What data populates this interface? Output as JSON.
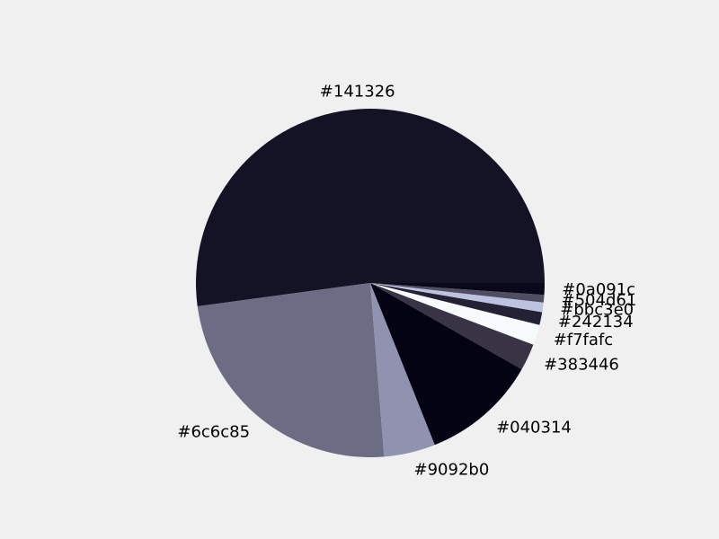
{
  "chart_data": {
    "type": "pie",
    "title": "",
    "legend": "none",
    "start_angle_deg": 0,
    "direction": "counterclockwise",
    "slices": [
      {
        "label": "#141326",
        "color": "#141326",
        "value": 52.5
      },
      {
        "label": "#6c6c85",
        "color": "#6c6c85",
        "value": 24.3
      },
      {
        "label": "#9092b0",
        "color": "#9092b0",
        "value": 4.8
      },
      {
        "label": "#040314",
        "color": "#040314",
        "value": 10.8
      },
      {
        "label": "#383446",
        "color": "#383446",
        "value": 2.5
      },
      {
        "label": "#f7fafc",
        "color": "#f7fafc",
        "value": 1.9
      },
      {
        "label": "#242134",
        "color": "#242134",
        "value": 1.2
      },
      {
        "label": "#bbc3e0",
        "color": "#bbc3e0",
        "value": 0.9
      },
      {
        "label": "#504d61",
        "color": "#504d61",
        "value": 0.7
      },
      {
        "label": "#0a091c",
        "color": "#0a091c",
        "value": 1.1
      }
    ]
  }
}
